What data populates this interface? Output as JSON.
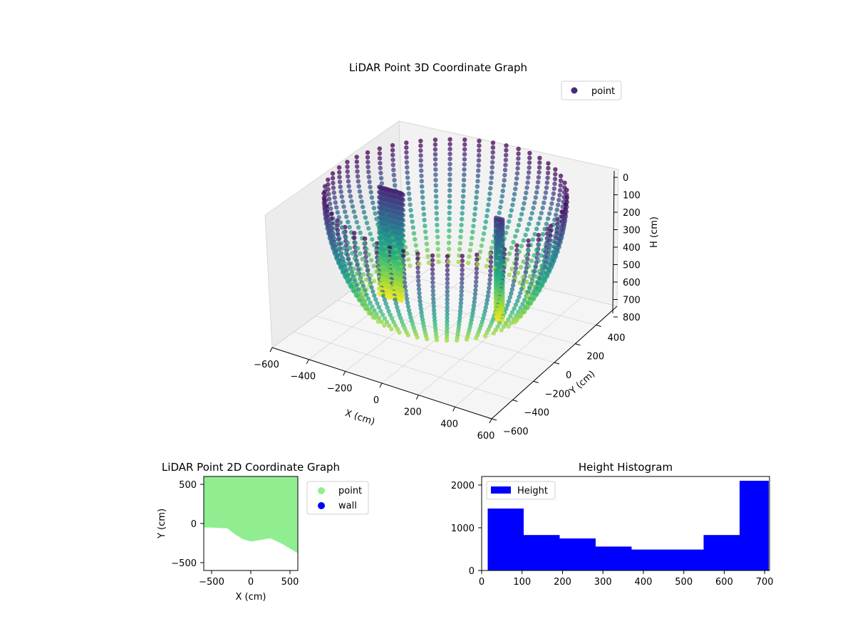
{
  "chart_data": [
    {
      "type": "scatter",
      "projection": "3d",
      "title": "LiDAR Point 3D Coordinate Graph",
      "xlabel": "X (cm)",
      "ylabel": "Y (cm)",
      "zlabel": "H (cm)",
      "xticks": [
        -600,
        -400,
        -200,
        0,
        200,
        400,
        600
      ],
      "yticks": [
        -600,
        -400,
        -200,
        0,
        200,
        400
      ],
      "zticks": [
        0,
        100,
        200,
        300,
        400,
        500,
        600,
        700,
        800
      ],
      "xlim": [
        -600,
        600
      ],
      "ylim": [
        -600,
        600
      ],
      "zlim": [
        0,
        800
      ],
      "zaxis_inverted": true,
      "legend": [
        "point"
      ],
      "legend_position": "upper right",
      "colormap": "viridis",
      "grid": true,
      "series": [
        {
          "name": "point",
          "color": "#472c7a",
          "description_values": "ring of points around the scan origin, radius ~600 cm, heights 0-700 cm, colored by height"
        }
      ]
    },
    {
      "type": "scatter",
      "title": "LiDAR Point 2D Coordinate Graph",
      "xlabel": "X (cm)",
      "ylabel": "Y (cm)",
      "xticks": [
        -500,
        0,
        500
      ],
      "yticks": [
        -500,
        0,
        500
      ],
      "xlim": [
        -600,
        600
      ],
      "ylim": [
        -600,
        600
      ],
      "legend": [
        "point",
        "wall"
      ],
      "legend_position": "outside right",
      "series": [
        {
          "name": "point",
          "color": "#90ee90",
          "boundary_x": [
            -600,
            -450,
            -350,
            -300,
            -200,
            -100,
            0,
            100,
            250,
            400,
            600
          ],
          "boundary_y": [
            -50,
            -55,
            -60,
            -60,
            -140,
            -200,
            -230,
            -215,
            -190,
            -260,
            -380
          ]
        },
        {
          "name": "wall",
          "color": "#0000ff"
        }
      ]
    },
    {
      "type": "bar",
      "title": "Height Histogram",
      "xlabel": "",
      "ylabel": "",
      "legend": [
        "Height"
      ],
      "legend_position": "upper left",
      "xticks": [
        0,
        100,
        200,
        300,
        400,
        500,
        600,
        700
      ],
      "yticks": [
        0,
        1000,
        2000
      ],
      "xlim": [
        0,
        712
      ],
      "ylim": [
        0,
        2200
      ],
      "bin_edges": [
        15,
        104,
        193,
        282,
        371,
        460,
        549,
        638,
        710
      ],
      "values": [
        1450,
        830,
        750,
        560,
        490,
        490,
        830,
        2100
      ],
      "color": "#0000ff"
    }
  ]
}
